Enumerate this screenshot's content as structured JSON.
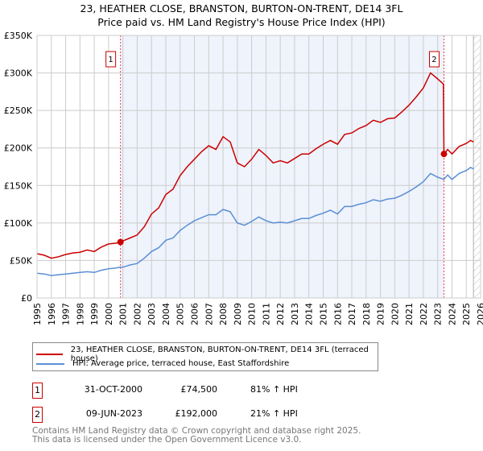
{
  "chart_data": {
    "type": "line",
    "title": "23, HEATHER CLOSE, BRANSTON, BURTON-ON-TRENT, DE14 3FL",
    "subtitle": "Price paid vs. HM Land Registry's House Price Index (HPI)",
    "xlim": [
      1995,
      2026
    ],
    "ylim": [
      0,
      350000
    ],
    "x_ticks": [
      "1995",
      "1996",
      "1997",
      "1998",
      "1999",
      "2000",
      "2001",
      "2002",
      "2003",
      "2004",
      "2005",
      "2006",
      "2007",
      "2008",
      "2009",
      "2010",
      "2011",
      "2012",
      "2013",
      "2014",
      "2015",
      "2016",
      "2017",
      "2018",
      "2019",
      "2020",
      "2021",
      "2022",
      "2023",
      "2024",
      "2025",
      "2026"
    ],
    "y_ticks": [
      {
        "v": 0,
        "label": "£0"
      },
      {
        "v": 50000,
        "label": "£50K"
      },
      {
        "v": 100000,
        "label": "£100K"
      },
      {
        "v": 150000,
        "label": "£150K"
      },
      {
        "v": 200000,
        "label": "£200K"
      },
      {
        "v": 250000,
        "label": "£250K"
      },
      {
        "v": 300000,
        "label": "£300K"
      },
      {
        "v": 350000,
        "label": "£350K"
      }
    ],
    "grid": true,
    "shaded_range": [
      2000.83,
      2023.44
    ],
    "projection_from": 2025.5,
    "series": [
      {
        "name": "23, HEATHER CLOSE, BRANSTON, BURTON-ON-TRENT, DE14 3FL (terraced house)",
        "color": "#cc0000",
        "x": [
          1995,
          1995.5,
          1996,
          1996.5,
          1997,
          1997.5,
          1998,
          1998.5,
          1999,
          1999.5,
          2000,
          2000.5,
          2000.83,
          2001,
          2001.5,
          2002,
          2002.5,
          2003,
          2003.5,
          2004,
          2004.5,
          2005,
          2005.5,
          2006,
          2006.5,
          2007,
          2007.5,
          2008,
          2008.5,
          2009,
          2009.5,
          2010,
          2010.5,
          2011,
          2011.5,
          2012,
          2012.5,
          2013,
          2013.5,
          2014,
          2014.5,
          2015,
          2015.5,
          2016,
          2016.5,
          2017,
          2017.5,
          2018,
          2018.5,
          2019,
          2019.5,
          2020,
          2020.5,
          2021,
          2021.5,
          2022,
          2022.5,
          2023,
          2023.4,
          2023.44,
          2023.7,
          2024,
          2024.5,
          2025,
          2025.3,
          2025.5
        ],
        "y": [
          59000,
          57000,
          53000,
          55000,
          58000,
          60000,
          61000,
          64000,
          62000,
          68000,
          72000,
          73000,
          74500,
          76000,
          80000,
          84000,
          95000,
          112000,
          120000,
          138000,
          145000,
          163000,
          175000,
          185000,
          195000,
          203000,
          198000,
          215000,
          208000,
          180000,
          175000,
          185000,
          198000,
          190000,
          180000,
          183000,
          180000,
          186000,
          192000,
          192000,
          199000,
          205000,
          210000,
          205000,
          218000,
          220000,
          226000,
          230000,
          237000,
          234000,
          239000,
          240000,
          248000,
          257000,
          268000,
          280000,
          300000,
          292000,
          285000,
          192000,
          198000,
          192000,
          202000,
          206000,
          210000,
          208000
        ]
      },
      {
        "name": "HPI: Average price, terraced house, East Staffordshire",
        "color": "#5b8fd4",
        "x": [
          1995,
          1995.5,
          1996,
          1996.5,
          1997,
          1997.5,
          1998,
          1998.5,
          1999,
          1999.5,
          2000,
          2000.5,
          2000.83,
          2001,
          2001.5,
          2002,
          2002.5,
          2003,
          2003.5,
          2004,
          2004.5,
          2005,
          2005.5,
          2006,
          2006.5,
          2007,
          2007.5,
          2008,
          2008.5,
          2009,
          2009.5,
          2010,
          2010.5,
          2011,
          2011.5,
          2012,
          2012.5,
          2013,
          2013.5,
          2014,
          2014.5,
          2015,
          2015.5,
          2016,
          2016.5,
          2017,
          2017.5,
          2018,
          2018.5,
          2019,
          2019.5,
          2020,
          2020.5,
          2021,
          2021.5,
          2022,
          2022.5,
          2023,
          2023.44,
          2023.7,
          2024,
          2024.5,
          2025,
          2025.3,
          2025.5
        ],
        "y": [
          33000,
          32000,
          30000,
          31000,
          32000,
          33000,
          34000,
          35000,
          34000,
          37000,
          39000,
          40000,
          41000,
          41000,
          44000,
          46000,
          53000,
          62000,
          67000,
          77000,
          80000,
          90000,
          97000,
          103000,
          107000,
          111000,
          111000,
          118000,
          115000,
          100000,
          97000,
          102000,
          108000,
          103000,
          100000,
          101000,
          100000,
          103000,
          106000,
          106000,
          110000,
          113000,
          117000,
          112000,
          122000,
          122000,
          125000,
          127000,
          131000,
          129000,
          132000,
          133000,
          137000,
          142000,
          148000,
          155000,
          166000,
          161000,
          158000,
          164000,
          158000,
          166000,
          170000,
          174000,
          172000
        ]
      }
    ],
    "sales": [
      {
        "id": "1",
        "x": 2000.83,
        "y": 74500
      },
      {
        "id": "2",
        "x": 2023.44,
        "y": 192000
      }
    ]
  },
  "legend": {
    "property": "23, HEATHER CLOSE, BRANSTON, BURTON-ON-TRENT, DE14 3FL (terraced house)",
    "hpi": "HPI: Average price, terraced house, East Staffordshire"
  },
  "sales_table": [
    {
      "id": "1",
      "date": "31-OCT-2000",
      "price": "£74,500",
      "hpi": "81% ↑ HPI"
    },
    {
      "id": "2",
      "date": "09-JUN-2023",
      "price": "£192,000",
      "hpi": "21% ↑ HPI"
    }
  ],
  "footer": {
    "line1": "Contains HM Land Registry data © Crown copyright and database right 2025.",
    "line2": "This data is licensed under the Open Government Licence v3.0."
  }
}
